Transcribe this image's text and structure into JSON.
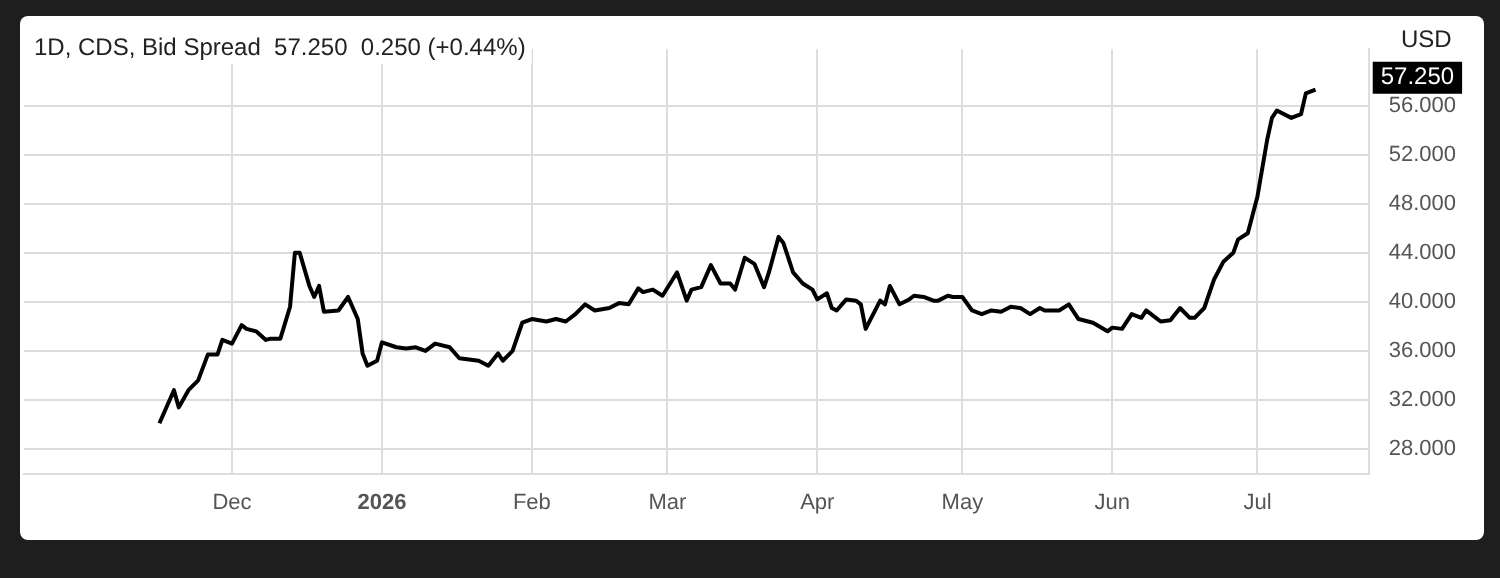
{
  "chart_data": {
    "type": "line",
    "title": "1D, CDS, Bid Spread  57.250  0.250 (+0.44%)",
    "annotations": [
      "USD",
      "57.250"
    ],
    "x": [
      "2025-11-16",
      "2025-11-19",
      "2025-11-20",
      "2025-11-22",
      "2025-11-24",
      "2025-11-26",
      "2025-11-28",
      "2025-11-29",
      "2025-12-01",
      "2025-12-03",
      "2025-12-04",
      "2025-12-06",
      "2025-12-08",
      "2025-12-09",
      "2025-12-11",
      "2025-12-13",
      "2025-12-14",
      "2025-12-15",
      "2025-12-17",
      "2025-12-18",
      "2025-12-19",
      "2025-12-20",
      "2025-12-23",
      "2025-12-25",
      "2025-12-27",
      "2025-12-28",
      "2025-12-29",
      "2025-12-31",
      "2026-01-01",
      "2026-01-04",
      "2026-01-06",
      "2026-01-08",
      "2026-01-10",
      "2026-01-12",
      "2026-01-15",
      "2026-01-17",
      "2026-01-21",
      "2026-01-23",
      "2026-01-25",
      "2026-01-26",
      "2026-01-28",
      "2026-01-30",
      "2026-02-01",
      "2026-02-04",
      "2026-02-06",
      "2026-02-08",
      "2026-02-10",
      "2026-02-12",
      "2026-02-14",
      "2026-02-17",
      "2026-02-19",
      "2026-02-21",
      "2026-02-23",
      "2026-02-24",
      "2026-02-26",
      "2026-02-28",
      "2026-03-03",
      "2026-03-05",
      "2026-03-06",
      "2026-03-08",
      "2026-03-10",
      "2026-03-12",
      "2026-03-14",
      "2026-03-15",
      "2026-03-17",
      "2026-03-19",
      "2026-03-21",
      "2026-03-22",
      "2026-03-24",
      "2026-03-25",
      "2026-03-27",
      "2026-03-29",
      "2026-03-31",
      "2026-04-01",
      "2026-04-03",
      "2026-04-04",
      "2026-04-05",
      "2026-04-07",
      "2026-04-09",
      "2026-04-10",
      "2026-04-11",
      "2026-04-14",
      "2026-04-15",
      "2026-04-16",
      "2026-04-18",
      "2026-04-20",
      "2026-04-21",
      "2026-04-23",
      "2026-04-25",
      "2026-04-26",
      "2026-04-28",
      "2026-04-29",
      "2026-05-01",
      "2026-05-03",
      "2026-05-05",
      "2026-05-07",
      "2026-05-09",
      "2026-05-11",
      "2026-05-13",
      "2026-05-15",
      "2026-05-17",
      "2026-05-18",
      "2026-05-21",
      "2026-05-23",
      "2026-05-25",
      "2026-05-28",
      "2026-05-31",
      "2026-06-01",
      "2026-06-03",
      "2026-06-05",
      "2026-06-07",
      "2026-06-08",
      "2026-06-10",
      "2026-06-11",
      "2026-06-13",
      "2026-06-15",
      "2026-06-17",
      "2026-06-18",
      "2026-06-20",
      "2026-06-22",
      "2026-06-24",
      "2026-06-26",
      "2026-06-27",
      "2026-06-29",
      "2026-07-01",
      "2026-07-03",
      "2026-07-04",
      "2026-07-05",
      "2026-07-08",
      "2026-07-10",
      "2026-07-11",
      "2026-07-13"
    ],
    "series": [
      {
        "color": "#000000",
        "values": [
          30.1,
          32.8,
          31.4,
          32.8,
          33.6,
          35.7,
          35.7,
          36.9,
          36.6,
          38.1,
          37.8,
          37.6,
          36.9,
          37.0,
          37.0,
          39.6,
          44.0,
          44.0,
          41.3,
          40.4,
          41.3,
          39.2,
          39.3,
          40.4,
          38.6,
          35.8,
          34.8,
          35.2,
          36.7,
          36.3,
          36.2,
          36.3,
          36.0,
          36.6,
          36.3,
          35.4,
          35.2,
          34.8,
          35.8,
          35.2,
          36.0,
          38.3,
          38.6,
          38.4,
          38.6,
          38.4,
          39.0,
          39.8,
          39.3,
          39.5,
          39.9,
          39.8,
          41.1,
          40.8,
          41.0,
          40.5,
          42.4,
          40.1,
          41.0,
          41.2,
          43.0,
          41.5,
          41.5,
          41.0,
          43.6,
          43.1,
          41.2,
          42.4,
          45.3,
          44.8,
          42.4,
          41.5,
          41.0,
          40.2,
          40.7,
          39.5,
          39.3,
          40.2,
          40.1,
          39.8,
          37.8,
          40.1,
          39.8,
          41.3,
          39.8,
          40.2,
          40.5,
          40.4,
          40.1,
          40.1,
          40.5,
          40.4,
          40.4,
          39.3,
          39.0,
          39.3,
          39.2,
          39.6,
          39.5,
          39.0,
          39.5,
          39.3,
          39.3,
          39.8,
          38.6,
          38.3,
          37.6,
          37.9,
          37.8,
          39.0,
          38.7,
          39.3,
          38.7,
          38.4,
          38.5,
          39.5,
          38.7,
          38.7,
          39.5,
          41.8,
          43.3,
          44.0,
          45.1,
          45.6,
          48.6,
          53.2,
          55.0,
          55.6,
          55.0,
          55.3,
          57.0,
          57.3
        ]
      }
    ],
    "xlim": [
      "2025-10-19",
      "2026-07-24"
    ],
    "xticks": [
      {
        "value": "2025-12-01",
        "label": "Dec"
      },
      {
        "value": "2026-01-01",
        "label": "2026"
      },
      {
        "value": "2026-02-01",
        "label": "Feb"
      },
      {
        "value": "2026-03-01",
        "label": "Mar"
      },
      {
        "value": "2026-04-01",
        "label": "Apr"
      },
      {
        "value": "2026-05-01",
        "label": "May"
      },
      {
        "value": "2026-06-01",
        "label": "Jun"
      },
      {
        "value": "2026-07-01",
        "label": "Jul"
      }
    ],
    "ylim": [
      26,
      60.6
    ],
    "yticks": [
      {
        "value": 28,
        "label": "28.000"
      },
      {
        "value": 32,
        "label": "32.000"
      },
      {
        "value": 36,
        "label": "36.000"
      },
      {
        "value": 40,
        "label": "40.000"
      },
      {
        "value": 44,
        "label": "44.000"
      },
      {
        "value": 48,
        "label": "48.000"
      },
      {
        "value": 52,
        "label": "52.000"
      },
      {
        "value": 56,
        "label": "56.000"
      }
    ],
    "grid": true,
    "legend": false,
    "marker": "none",
    "line_style": "solid"
  }
}
